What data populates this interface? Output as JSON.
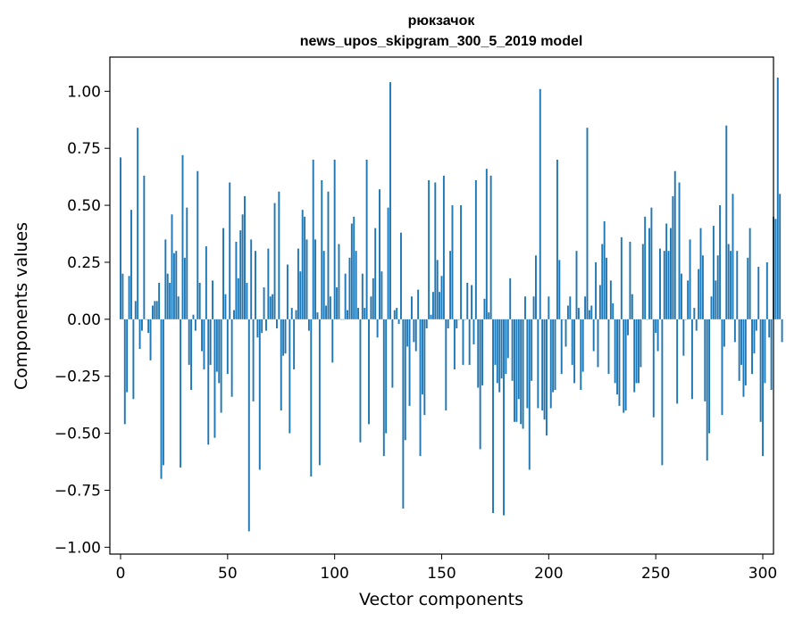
{
  "chart_data": {
    "type": "bar",
    "title": "рюкзачок",
    "subtitle": "news_upos_skipgram_300_5_2019 model",
    "xlabel": "Vector components",
    "ylabel": "Components values",
    "xlim": [
      -5,
      305
    ],
    "ylim": [
      -1.03,
      1.15
    ],
    "xticks": [
      0,
      50,
      100,
      150,
      200,
      250,
      300
    ],
    "yticks": [
      -1.0,
      -0.75,
      -0.5,
      -0.25,
      0.0,
      0.25,
      0.5,
      0.75,
      1.0
    ],
    "ytick_labels": [
      "−1.00",
      "−0.75",
      "−0.50",
      "−0.25",
      "0.00",
      "0.25",
      "0.50",
      "0.75",
      "1.00"
    ],
    "xtick_labels": [
      "0",
      "50",
      "100",
      "150",
      "200",
      "250",
      "300"
    ],
    "grid": false,
    "bar_color": "#1f77b4",
    "x_start": 0,
    "values": [
      0.71,
      0.2,
      -0.46,
      -0.32,
      0.19,
      0.48,
      -0.35,
      0.08,
      0.84,
      -0.13,
      -0.05,
      0.63,
      0.0,
      -0.06,
      -0.18,
      0.06,
      0.08,
      0.08,
      0.16,
      -0.7,
      -0.64,
      0.35,
      0.2,
      0.16,
      0.46,
      0.29,
      0.3,
      0.1,
      -0.65,
      0.72,
      0.27,
      0.49,
      -0.2,
      -0.31,
      0.02,
      -0.05,
      0.65,
      0.16,
      -0.14,
      -0.22,
      0.32,
      -0.55,
      -0.2,
      0.17,
      -0.52,
      -0.23,
      -0.28,
      -0.41,
      0.4,
      0.11,
      -0.24,
      0.6,
      -0.34,
      0.04,
      0.34,
      0.18,
      0.39,
      0.46,
      0.54,
      0.16,
      -0.93,
      0.35,
      -0.36,
      0.3,
      -0.08,
      -0.66,
      -0.06,
      0.14,
      -0.05,
      0.31,
      0.1,
      0.11,
      0.51,
      -0.04,
      0.56,
      -0.4,
      -0.16,
      -0.15,
      0.24,
      -0.5,
      0.05,
      -0.22,
      0.04,
      0.31,
      0.21,
      0.48,
      0.45,
      0.35,
      -0.05,
      -0.69,
      0.7,
      0.35,
      0.03,
      -0.64,
      0.61,
      0.3,
      0.06,
      0.56,
      0.1,
      -0.19,
      0.7,
      0.14,
      0.33,
      0.0,
      0.0,
      0.2,
      0.04,
      0.27,
      0.42,
      0.45,
      0.3,
      0.05,
      -0.54,
      0.2,
      0.05,
      0.7,
      -0.46,
      0.1,
      0.18,
      0.4,
      -0.08,
      0.57,
      0.21,
      -0.6,
      -0.5,
      0.49,
      1.04,
      -0.3,
      0.04,
      0.05,
      -0.02,
      0.38,
      -0.83,
      -0.53,
      -0.12,
      -0.38,
      0.1,
      -0.1,
      -0.14,
      0.13,
      -0.6,
      -0.33,
      -0.42,
      -0.04,
      0.61,
      0.02,
      0.12,
      0.6,
      0.26,
      0.12,
      0.19,
      0.63,
      -0.4,
      -0.04,
      0.3,
      0.5,
      -0.22,
      -0.04,
      0.0,
      0.5,
      -0.2,
      0.0,
      0.16,
      -0.2,
      0.15,
      -0.11,
      0.61,
      -0.3,
      -0.57,
      -0.29,
      0.09,
      0.66,
      0.03,
      0.63,
      -0.85,
      -0.2,
      -0.28,
      -0.32,
      -0.26,
      -0.86,
      -0.24,
      -0.17,
      0.18,
      -0.27,
      -0.45,
      -0.45,
      -0.35,
      -0.46,
      -0.48,
      0.1,
      -0.39,
      -0.66,
      -0.27,
      0.1,
      0.28,
      -0.39,
      1.01,
      -0.4,
      -0.44,
      -0.51,
      0.1,
      -0.39,
      -0.32,
      -0.31,
      0.7,
      0.26,
      -0.24,
      0.0,
      -0.12,
      0.06,
      0.1,
      -0.2,
      -0.28,
      0.3,
      0.05,
      -0.31,
      -0.23,
      0.1,
      0.84,
      0.04,
      0.06,
      -0.14,
      0.25,
      -0.21,
      0.15,
      0.33,
      0.43,
      0.27,
      -0.24,
      0.17,
      0.07,
      -0.28,
      -0.33,
      -0.38,
      0.36,
      -0.41,
      -0.4,
      -0.07,
      0.34,
      0.11,
      -0.32,
      -0.28,
      -0.28,
      -0.21,
      0.33,
      0.45,
      0.0,
      0.4,
      0.49,
      -0.43,
      -0.06,
      -0.14,
      0.31,
      -0.64,
      0.3,
      0.42,
      0.3,
      0.4,
      0.54,
      0.65,
      -0.37,
      0.6,
      0.2,
      -0.16,
      0.0,
      0.17,
      0.35,
      -0.35,
      0.05,
      -0.05,
      0.22,
      0.4,
      0.28,
      -0.36,
      -0.62,
      -0.5,
      0.1,
      0.41,
      0.17,
      0.28,
      0.5,
      -0.42,
      -0.12,
      0.85,
      0.33,
      0.3,
      0.55,
      -0.1,
      0.3,
      -0.27,
      -0.2,
      -0.34,
      -0.29,
      0.27,
      0.4,
      -0.24,
      -0.15,
      -0.05,
      0.23,
      -0.45,
      -0.6,
      -0.28,
      0.25,
      -0.08,
      -0.31,
      0.45,
      0.44,
      1.06,
      0.55,
      -0.1
    ]
  }
}
